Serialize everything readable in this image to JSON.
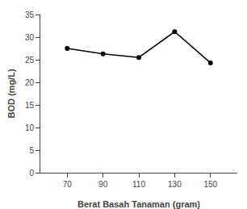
{
  "chart_data": {
    "type": "line",
    "x": [
      70,
      90,
      110,
      130,
      150
    ],
    "values": [
      27.5,
      26.3,
      25.5,
      31.2,
      24.3
    ],
    "xlabel": "Berat Basah Tanaman (gram)",
    "ylabel": "BOD (mg/L)",
    "xlim": [
      55,
      165
    ],
    "ylim": [
      0,
      35
    ],
    "xticks": [
      70,
      90,
      110,
      130,
      150
    ],
    "yticks": [
      0,
      5,
      10,
      15,
      20,
      25,
      30,
      35
    ],
    "color": "#000000",
    "marker": "circle",
    "grid": false
  }
}
